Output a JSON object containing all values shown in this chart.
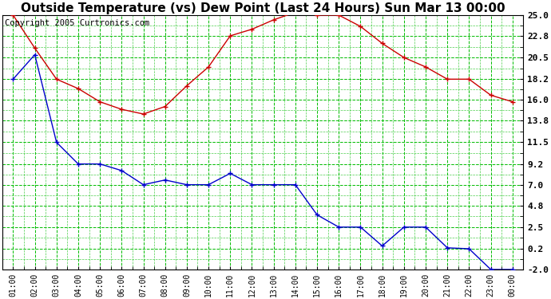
{
  "title": "Outside Temperature (vs) Dew Point (Last 24 Hours) Sun Mar 13 00:00",
  "copyright": "Copyright 2005 Curtronics.com",
  "x_labels": [
    "01:00",
    "02:00",
    "03:00",
    "04:00",
    "05:00",
    "06:00",
    "07:00",
    "08:00",
    "09:00",
    "10:00",
    "11:00",
    "12:00",
    "13:00",
    "14:00",
    "15:00",
    "16:00",
    "17:00",
    "18:00",
    "19:00",
    "20:00",
    "21:00",
    "22:00",
    "23:00",
    "00:00"
  ],
  "temp_data": [
    25.0,
    21.5,
    18.2,
    17.2,
    15.8,
    15.0,
    14.5,
    15.3,
    17.5,
    19.5,
    22.8,
    23.5,
    24.5,
    25.3,
    25.0,
    25.0,
    23.8,
    22.0,
    20.5,
    19.5,
    18.2,
    18.2,
    16.5,
    15.8
  ],
  "dew_data": [
    18.2,
    20.8,
    11.5,
    9.2,
    9.2,
    8.5,
    7.0,
    7.5,
    7.0,
    7.0,
    8.2,
    7.0,
    7.0,
    7.0,
    3.8,
    2.5,
    2.5,
    0.5,
    2.5,
    2.5,
    0.3,
    0.2,
    -2.0,
    -2.0
  ],
  "y_ticks": [
    -2.0,
    0.2,
    2.5,
    4.8,
    7.0,
    9.2,
    11.5,
    13.8,
    16.0,
    18.2,
    20.5,
    22.8,
    25.0
  ],
  "y_min": -2.0,
  "y_max": 25.0,
  "temp_color": "#cc0000",
  "dew_color": "#0000cc",
  "grid_color": "#00bb00",
  "bg_color": "#ffffff",
  "plot_bg_color": "#ffffff",
  "title_fontsize": 11,
  "copyright_fontsize": 7.5,
  "tick_fontsize": 8,
  "x_tick_fontsize": 7
}
